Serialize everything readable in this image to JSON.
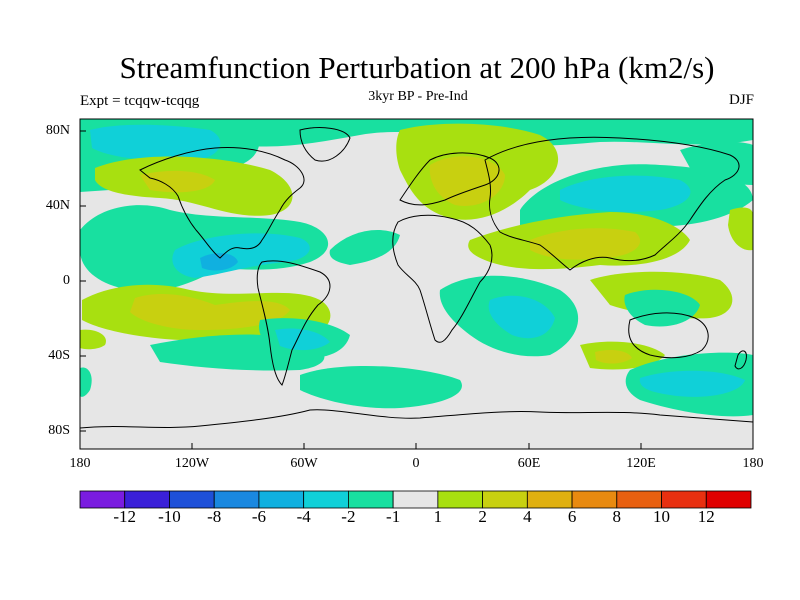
{
  "title": "Streamfunction Perturbation at 200 hPa (km2/s)",
  "left_label": "Expt = tcqqw-tcqqg",
  "center_label": "3kyr BP - Pre-Ind",
  "right_label": "DJF",
  "lat_ticks": [
    "80N",
    "40N",
    "0",
    "40S",
    "80S"
  ],
  "lon_ticks": [
    "180",
    "120W",
    "60W",
    "0",
    "60E",
    "120E",
    "180"
  ],
  "colorbar": {
    "labels": [
      "-12",
      "-10",
      "-8",
      "-6",
      "-4",
      "-2",
      "-1",
      "1",
      "2",
      "4",
      "6",
      "8",
      "10",
      "12"
    ],
    "colors": [
      "#7a1ce0",
      "#3a20d8",
      "#1e50d8",
      "#1a88e0",
      "#10b0e0",
      "#10d0d8",
      "#18e0a0",
      "#e6e6e6",
      "#a8e010",
      "#c8d010",
      "#e0b010",
      "#e88a10",
      "#e86010",
      "#e83010",
      "#e00000"
    ]
  },
  "map": {
    "background_color": "#e6e6e6",
    "anomaly_regions": [
      {
        "region": "Arctic / N Atlantic high latitudes",
        "sign": "negative",
        "color": "#18e0a0"
      },
      {
        "region": "Europe / Western Asia",
        "sign": "positive",
        "color": "#a8e010"
      },
      {
        "region": "Eastern Mediterranean / Black Sea",
        "sign": "positive",
        "color": "#c8d010"
      },
      {
        "region": "Central & South Asia",
        "sign": "positive",
        "color": "#c8d010"
      },
      {
        "region": "North Pacific mid-latitudes",
        "sign": "positive",
        "color": "#a8e010"
      },
      {
        "region": "Central America / Caribbean",
        "sign": "negative",
        "color": "#10d0d8"
      },
      {
        "region": "Subtropical South Pacific",
        "sign": "positive",
        "color": "#c8d010"
      },
      {
        "region": "Southwest Indian Ocean",
        "sign": "negative",
        "color": "#10d0d8"
      },
      {
        "region": "Southern Ocean south of Australia",
        "sign": "negative",
        "color": "#10d0d8"
      },
      {
        "region": "Australia",
        "sign": "negative",
        "color": "#18e0a0"
      }
    ]
  }
}
